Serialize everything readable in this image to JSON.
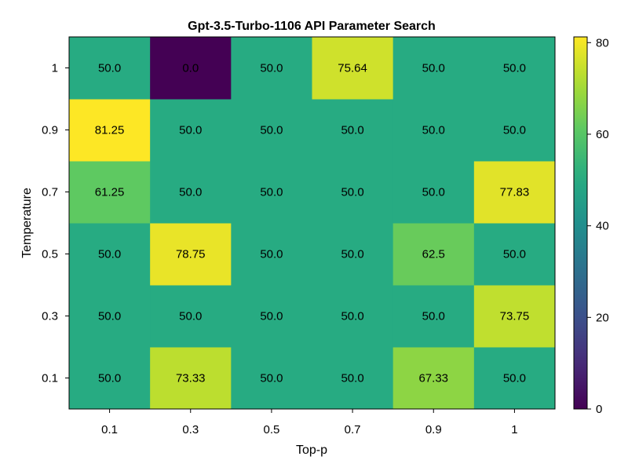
{
  "chart_data": {
    "type": "heatmap",
    "title": "Gpt-3.5-Turbo-1106 API Parameter Search",
    "xlabel": "Top-p",
    "ylabel": "Temperature",
    "x_categories": [
      "0.1",
      "0.3",
      "0.5",
      "0.7",
      "0.9",
      "1"
    ],
    "y_categories": [
      "0.1",
      "0.3",
      "0.5",
      "0.7",
      "0.9",
      "1"
    ],
    "values": [
      [
        50.0,
        73.33,
        50.0,
        50.0,
        67.33,
        50.0
      ],
      [
        50.0,
        50.0,
        50.0,
        50.0,
        50.0,
        73.75
      ],
      [
        50.0,
        78.75,
        50.0,
        50.0,
        62.5,
        50.0
      ],
      [
        61.25,
        50.0,
        50.0,
        50.0,
        50.0,
        77.83
      ],
      [
        81.25,
        50.0,
        50.0,
        50.0,
        50.0,
        50.0
      ],
      [
        50.0,
        0.0,
        50.0,
        75.64,
        50.0,
        50.0
      ]
    ],
    "cell_labels": [
      [
        "50.0",
        "73.33",
        "50.0",
        "50.0",
        "67.33",
        "50.0"
      ],
      [
        "50.0",
        "50.0",
        "50.0",
        "50.0",
        "50.0",
        "73.75"
      ],
      [
        "50.0",
        "78.75",
        "50.0",
        "50.0",
        "62.5",
        "50.0"
      ],
      [
        "61.25",
        "50.0",
        "50.0",
        "50.0",
        "50.0",
        "77.83"
      ],
      [
        "81.25",
        "50.0",
        "50.0",
        "50.0",
        "50.0",
        "50.0"
      ],
      [
        "50.0",
        "0.0",
        "50.0",
        "75.64",
        "50.0",
        "50.0"
      ]
    ],
    "colorscale": "viridis",
    "color_range": [
      0,
      81.25
    ],
    "colorbar_ticks": [
      "0",
      "20",
      "40",
      "60",
      "80"
    ],
    "grid": false
  }
}
